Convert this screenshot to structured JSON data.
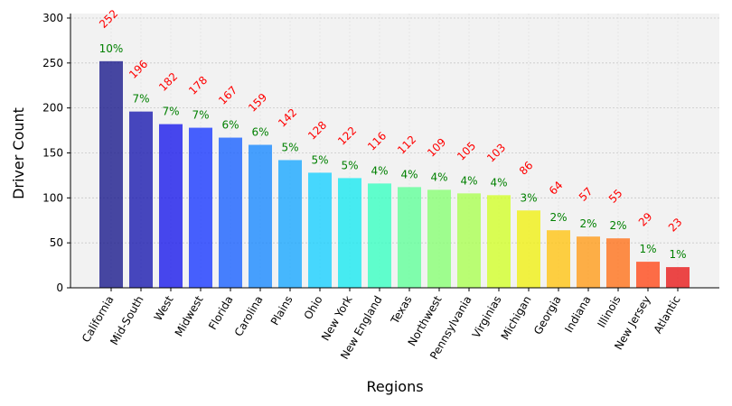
{
  "chart_data": {
    "type": "bar",
    "title": "",
    "xlabel": "Regions",
    "ylabel": "Driver Count",
    "ylim": [
      0,
      305
    ],
    "yticks": [
      0,
      50,
      100,
      150,
      200,
      250,
      300
    ],
    "grid": true,
    "categories": [
      "California",
      "Mid-South",
      "West",
      "Midwest",
      "Florida",
      "Carolina",
      "Plains",
      "Ohio",
      "New York",
      "New England",
      "Texas",
      "Northwest",
      "Pennsylvania",
      "Virginias",
      "Michigan",
      "Georgia",
      "Indiana",
      "Illinois",
      "New Jersey",
      "Atlantic"
    ],
    "values": [
      252,
      196,
      182,
      178,
      167,
      159,
      142,
      128,
      122,
      116,
      112,
      109,
      105,
      103,
      86,
      64,
      57,
      55,
      29,
      23
    ],
    "value_labels": [
      "252",
      "196",
      "182",
      "178",
      "167",
      "159",
      "142",
      "128",
      "122",
      "116",
      "112",
      "109",
      "105",
      "103",
      "86",
      "64",
      "57",
      "55",
      "29",
      "23"
    ],
    "percent_labels": [
      "10%",
      "7%",
      "7%",
      "7%",
      "6%",
      "6%",
      "5%",
      "5%",
      "5%",
      "4%",
      "4%",
      "4%",
      "4%",
      "4%",
      "3%",
      "2%",
      "2%",
      "2%",
      "1%",
      "1%"
    ],
    "colors": [
      "#1a1a8c",
      "#1a1aaf",
      "#1a1aeb",
      "#1a3aff",
      "#1a62ff",
      "#1a8aff",
      "#1aa8ff",
      "#1ad0ff",
      "#1ae8f0",
      "#3affc2",
      "#62ff9a",
      "#88ff74",
      "#aaff52",
      "#d2ff2a",
      "#f0f014",
      "#ffc414",
      "#ff9c1a",
      "#ff721a",
      "#ff4a1a",
      "#e81a1a",
      "#b41a1a"
    ]
  }
}
